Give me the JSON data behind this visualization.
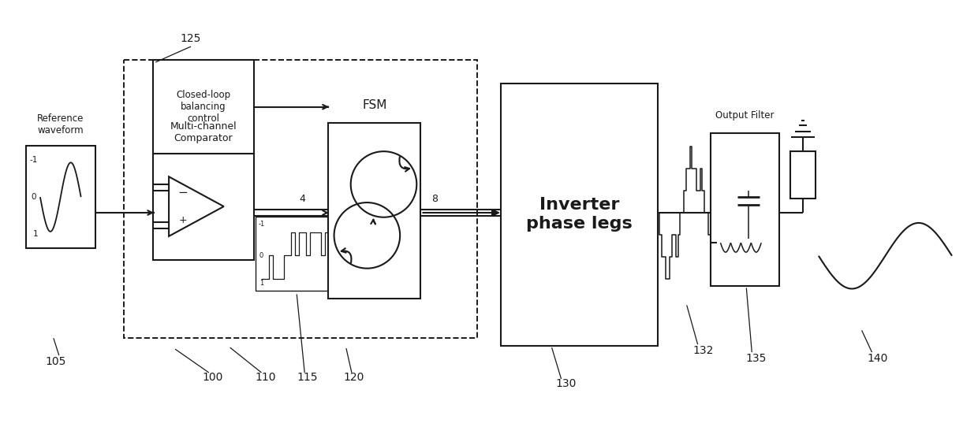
{
  "bg_color": "#ffffff",
  "line_color": "#1a1a1a",
  "fig_width": 12.4,
  "fig_height": 5.42,
  "dpi": 100,
  "labels": {
    "ref_waveform": "Reference\nwaveform",
    "multi_channel": "Multi-channel\nComparator",
    "closed_loop": "Closed-loop\nbalancing\ncontrol",
    "fsm": "FSM",
    "inverter": "Inverter\nphase legs",
    "output_filter": "Output Filter",
    "n100": "100",
    "n105": "105",
    "n110": "110",
    "n115": "115",
    "n120": "120",
    "n125": "125",
    "n130": "130",
    "n132": "132",
    "n135": "135",
    "n140": "140",
    "num4": "4",
    "num8": "8"
  }
}
